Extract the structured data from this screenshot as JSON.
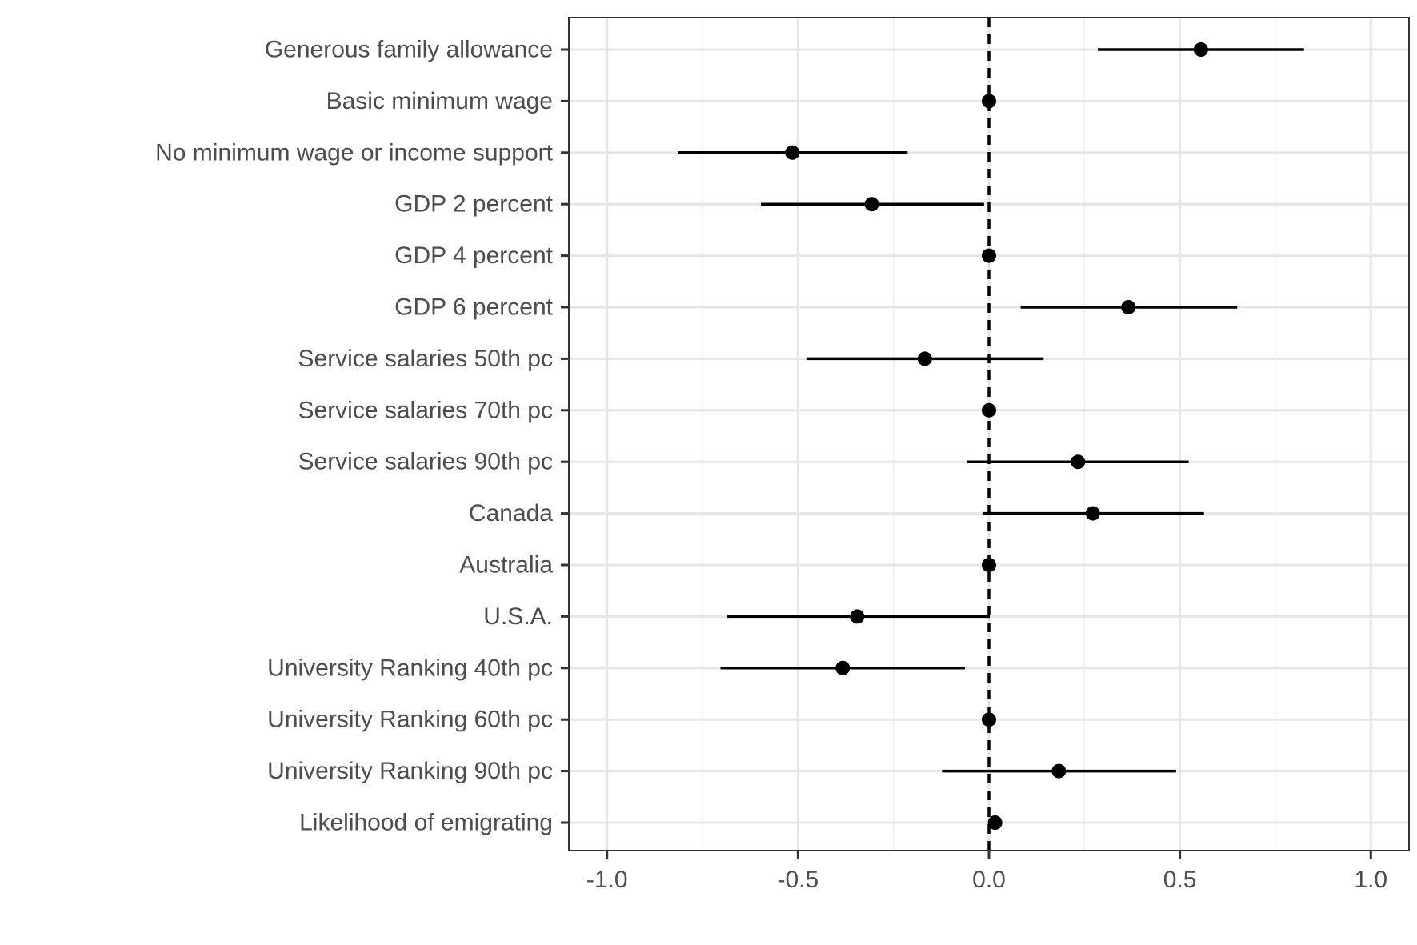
{
  "chart_data": {
    "type": "scatter",
    "title": "",
    "xlabel": "",
    "ylabel": "",
    "xlim": [
      -1.1,
      1.1
    ],
    "xticks": [
      -1.0,
      -0.5,
      0.0,
      0.5,
      1.0
    ],
    "xtick_labels": [
      "-1.0",
      "-0.5",
      "0.0",
      "0.5",
      "1.0"
    ],
    "reference_line": {
      "x": 0,
      "style": "dashed"
    },
    "grid": true,
    "categories": [
      "Generous family allowance",
      "Basic minimum wage",
      "No minimum wage or income support",
      "GDP 2 percent",
      "GDP 4 percent",
      "GDP 6 percent",
      "Service salaries 50th pc",
      "Service salaries 70th pc",
      "Service salaries 90th pc",
      "Canada",
      "Australia",
      "U.S.A.",
      "University Ranking 40th pc",
      "University Ranking 60th pc",
      "University Ranking 90th pc",
      "Likelihood of emigrating"
    ],
    "estimates": [
      0.555,
      0.0,
      -0.515,
      -0.307,
      0.0,
      0.365,
      -0.168,
      0.0,
      0.233,
      0.272,
      0.0,
      -0.345,
      -0.383,
      0.0,
      0.183,
      0.016
    ],
    "ci_low": [
      0.285,
      0.0,
      -0.815,
      -0.597,
      0.0,
      0.083,
      -0.478,
      0.0,
      -0.057,
      -0.017,
      0.0,
      -0.685,
      -0.703,
      0.0,
      -0.123,
      0.016
    ],
    "ci_high": [
      0.825,
      0.0,
      -0.213,
      -0.013,
      0.0,
      0.65,
      0.143,
      0.0,
      0.523,
      0.563,
      0.0,
      0.002,
      -0.063,
      0.0,
      0.49,
      0.016
    ]
  }
}
